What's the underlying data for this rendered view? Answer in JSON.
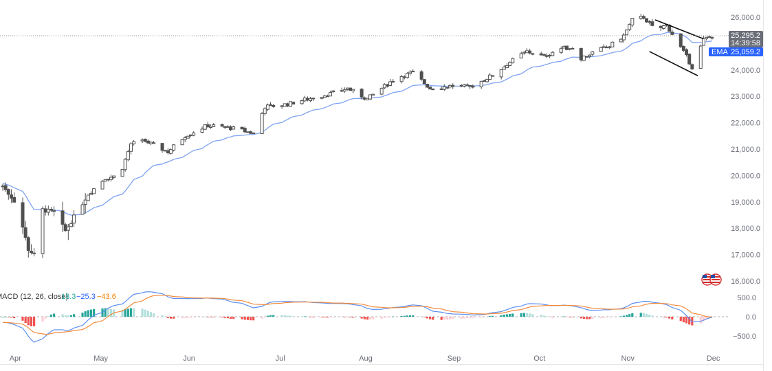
{
  "chart_data": {
    "type": "candlestick",
    "price_axis": {
      "ticks": [
        16000,
        17000,
        18000,
        19000,
        20000,
        21000,
        22000,
        23000,
        24000,
        25000,
        26000
      ],
      "tick_labels": [
        "16,000.0",
        "17,000.0",
        "18,000.0",
        "19,000.0",
        "20,000.0",
        "21,000.0",
        "22,000.0",
        "23,000.0",
        "24,000.0",
        "",
        "26,000.0"
      ],
      "range": [
        15600,
        26400
      ]
    },
    "time_axis": {
      "labels": [
        "Apr",
        "May",
        "Jun",
        "Jul",
        "Aug",
        "Sep",
        "Oct",
        "Nov",
        "Dec"
      ],
      "label_day_index": [
        2,
        32,
        63,
        95,
        125,
        156,
        186,
        217,
        247
      ],
      "range_day_index": [
        0,
        250
      ]
    },
    "price_label": {
      "value": 25295.2,
      "text": "25,295.2",
      "countdown": "14:39:58",
      "color": "#6b6e78"
    },
    "ema_label": {
      "name": "EMA",
      "value": 25059.2,
      "text": "25,059.2",
      "color": "#2962ff"
    },
    "ema_color": "#7ea2f2",
    "candle_color": "#505050",
    "channel": {
      "upper": [
        [
          229,
          25900
        ],
        [
          246,
          25180
        ]
      ],
      "lower": [
        [
          227,
          24700
        ],
        [
          244,
          23780
        ]
      ]
    },
    "macd": {
      "label": "MACD (12, 26, close)",
      "hist_value": "18.3",
      "macd_value": "−25.3",
      "signal_value": "−43.6",
      "axis_ticks": [
        "500.0",
        "0.0",
        "−500.0"
      ],
      "range": [
        -700,
        750
      ],
      "macd_color": "#5b8ff0",
      "signal_color": "#f28a3b",
      "hist_up_color": "#26a69a",
      "hist_down_color": "#ef5350"
    }
  }
}
